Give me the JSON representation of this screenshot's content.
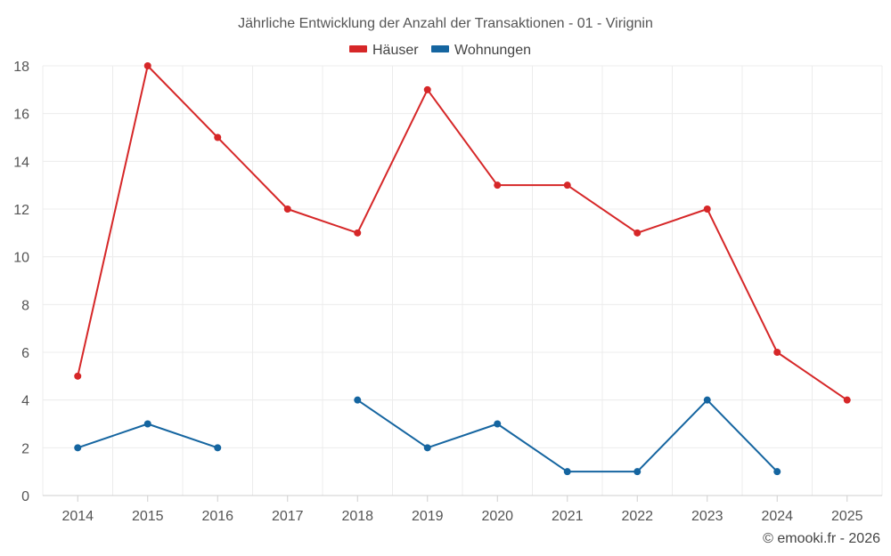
{
  "chart_data": {
    "type": "line",
    "title": "Jährliche Entwicklung der Anzahl der Transaktionen - 01 - Virignin",
    "categories": [
      "2014",
      "2015",
      "2016",
      "2017",
      "2018",
      "2019",
      "2020",
      "2021",
      "2022",
      "2023",
      "2024",
      "2025"
    ],
    "series": [
      {
        "name": "Häuser",
        "color": "#d62728",
        "values": [
          5,
          18,
          15,
          12,
          11,
          17,
          13,
          13,
          11,
          12,
          6,
          4
        ]
      },
      {
        "name": "Wohnungen",
        "color": "#1565a0",
        "values": [
          2,
          3,
          2,
          null,
          4,
          2,
          3,
          1,
          1,
          4,
          1,
          null
        ]
      }
    ],
    "ylim": [
      0,
      18
    ],
    "yticks": [
      0,
      2,
      4,
      6,
      8,
      10,
      12,
      14,
      16,
      18
    ],
    "grid": true,
    "legend_position": "top-center",
    "xlabel": "",
    "ylabel": ""
  },
  "credit": "© emooki.fr - 2026"
}
